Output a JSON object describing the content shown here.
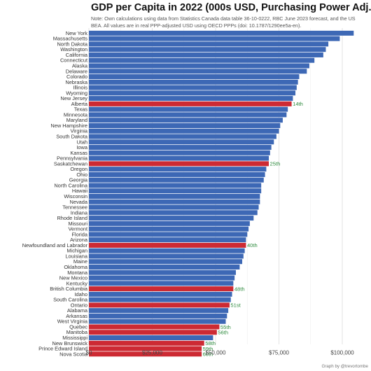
{
  "chart_data": {
    "type": "bar",
    "orientation": "horizontal",
    "title": "GDP per Capita in 2022 (000s USD, Purchasing Power Adj.)",
    "note": "Note: Own calculations using data from Statistics Canada data table 36-10-0222, RBC June 2023 forecast, and the US BEA. All values are in real PPP-adjusted USD using OECD PPPs (doi: 10.1787/1290ee5a-en).",
    "credit": "Graph by @trevortombe",
    "xlim": [
      0,
      105000
    ],
    "xticks": [
      0,
      25000,
      50000,
      75000,
      100000
    ],
    "xtick_labels": [
      "$0",
      "$25,000",
      "$50,000",
      "$75,000",
      "$100,000"
    ],
    "grid": true,
    "colors": {
      "us": "#3d68b5",
      "canada": "#cd2a33",
      "rank_text": "#2e8b3e"
    },
    "bars": [
      {
        "name": "New York",
        "value": 104500,
        "group": "us"
      },
      {
        "name": "Massachusetts",
        "value": 99000,
        "group": "us"
      },
      {
        "name": "North Dakota",
        "value": 94500,
        "group": "us"
      },
      {
        "name": "Washington",
        "value": 93500,
        "group": "us"
      },
      {
        "name": "California",
        "value": 92500,
        "group": "us"
      },
      {
        "name": "Connecticut",
        "value": 89000,
        "group": "us"
      },
      {
        "name": "Alaska",
        "value": 87000,
        "group": "us"
      },
      {
        "name": "Delaware",
        "value": 86000,
        "group": "us"
      },
      {
        "name": "Colorado",
        "value": 83000,
        "group": "us"
      },
      {
        "name": "Nebraska",
        "value": 82500,
        "group": "us"
      },
      {
        "name": "Illinois",
        "value": 82000,
        "group": "us"
      },
      {
        "name": "Wyoming",
        "value": 81500,
        "group": "us"
      },
      {
        "name": "New Jersey",
        "value": 80500,
        "group": "us"
      },
      {
        "name": "Alberta",
        "value": 80000,
        "group": "canada",
        "rank": "14th"
      },
      {
        "name": "Texas",
        "value": 78500,
        "group": "us"
      },
      {
        "name": "Minnesota",
        "value": 78000,
        "group": "us"
      },
      {
        "name": "Maryland",
        "value": 76500,
        "group": "us"
      },
      {
        "name": "New Hampshire",
        "value": 75500,
        "group": "us"
      },
      {
        "name": "Virginia",
        "value": 75000,
        "group": "us"
      },
      {
        "name": "South Dakota",
        "value": 74000,
        "group": "us"
      },
      {
        "name": "Utah",
        "value": 73000,
        "group": "us"
      },
      {
        "name": "Iowa",
        "value": 72000,
        "group": "us"
      },
      {
        "name": "Kansas",
        "value": 71500,
        "group": "us"
      },
      {
        "name": "Pennsylvania",
        "value": 71000,
        "group": "us"
      },
      {
        "name": "Saskatchewan",
        "value": 71000,
        "group": "canada",
        "rank": "25th"
      },
      {
        "name": "Oregon",
        "value": 70000,
        "group": "us"
      },
      {
        "name": "Ohio",
        "value": 69500,
        "group": "us"
      },
      {
        "name": "Georgia",
        "value": 69000,
        "group": "us"
      },
      {
        "name": "North Carolina",
        "value": 68000,
        "group": "us"
      },
      {
        "name": "Hawaii",
        "value": 68000,
        "group": "us"
      },
      {
        "name": "Wisconsin",
        "value": 67500,
        "group": "us"
      },
      {
        "name": "Nevada",
        "value": 67500,
        "group": "us"
      },
      {
        "name": "Tennessee",
        "value": 67000,
        "group": "us"
      },
      {
        "name": "Indiana",
        "value": 66500,
        "group": "us"
      },
      {
        "name": "Rhode Island",
        "value": 65000,
        "group": "us"
      },
      {
        "name": "Missouri",
        "value": 63500,
        "group": "us"
      },
      {
        "name": "Vermont",
        "value": 63000,
        "group": "us"
      },
      {
        "name": "Florida",
        "value": 62500,
        "group": "us"
      },
      {
        "name": "Arizona",
        "value": 62000,
        "group": "us"
      },
      {
        "name": "Newfoundland and Labrador",
        "value": 62000,
        "group": "canada",
        "rank": "40th"
      },
      {
        "name": "Michigan",
        "value": 61500,
        "group": "us"
      },
      {
        "name": "Louisiana",
        "value": 61000,
        "group": "us"
      },
      {
        "name": "Maine",
        "value": 60500,
        "group": "us"
      },
      {
        "name": "Oklahoma",
        "value": 59500,
        "group": "us"
      },
      {
        "name": "Montana",
        "value": 58000,
        "group": "us"
      },
      {
        "name": "New Mexico",
        "value": 57500,
        "group": "us"
      },
      {
        "name": "Kentucky",
        "value": 57000,
        "group": "us"
      },
      {
        "name": "British Columbia",
        "value": 57000,
        "group": "canada",
        "rank": "48th"
      },
      {
        "name": "Idaho",
        "value": 56500,
        "group": "us"
      },
      {
        "name": "South Carolina",
        "value": 56000,
        "group": "us"
      },
      {
        "name": "Ontario",
        "value": 55500,
        "group": "canada",
        "rank": "51st"
      },
      {
        "name": "Alabama",
        "value": 55000,
        "group": "us"
      },
      {
        "name": "Arkansas",
        "value": 54500,
        "group": "us"
      },
      {
        "name": "West Virginia",
        "value": 54000,
        "group": "us"
      },
      {
        "name": "Quebec",
        "value": 51500,
        "group": "canada",
        "rank": "55th"
      },
      {
        "name": "Manitoba",
        "value": 50500,
        "group": "canada",
        "rank": "56th"
      },
      {
        "name": "Mississippi",
        "value": 49000,
        "group": "us"
      },
      {
        "name": "New Brunswick",
        "value": 45500,
        "group": "canada",
        "rank": "58th"
      },
      {
        "name": "Prince Edward Island",
        "value": 44500,
        "group": "canada",
        "rank": "59th"
      },
      {
        "name": "Nova Scotia",
        "value": 44500,
        "group": "canada",
        "rank": "60th"
      }
    ]
  }
}
